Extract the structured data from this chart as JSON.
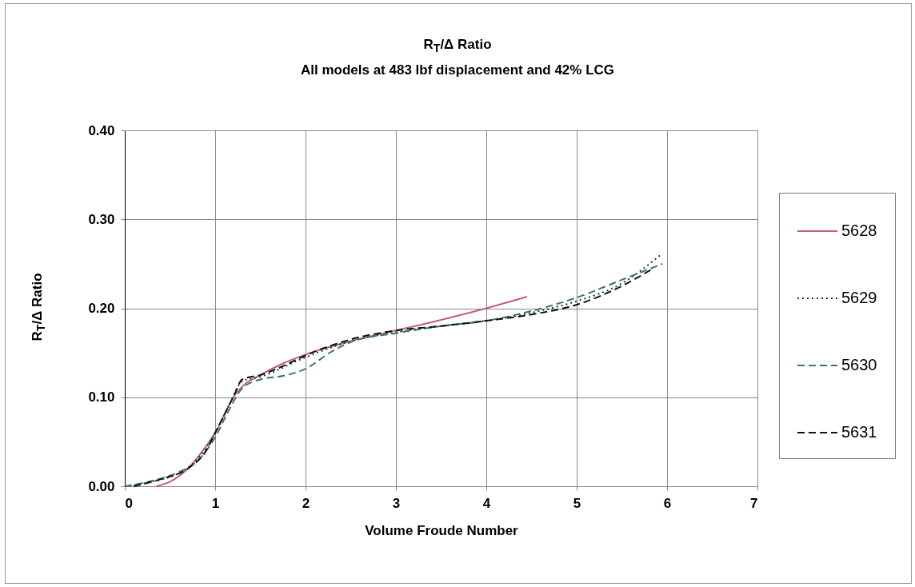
{
  "chart_data": {
    "type": "line",
    "title": "R$_{T}$/Δ Ratio",
    "subtitle": "All models at 483 lbf displacement and 42% LCG",
    "xlabel": "Volume Froude Number",
    "ylabel": "R$_{T}$/Δ Ratio",
    "xlim": [
      0,
      7
    ],
    "xticks": [
      0,
      1,
      2,
      3,
      4,
      5,
      6,
      7
    ],
    "ylim": [
      0,
      0.4
    ],
    "yticks": [
      {
        "value": 0,
        "label": "0.00"
      },
      {
        "value": 0.1,
        "label": "0.10"
      },
      {
        "value": 0.2,
        "label": "0.20"
      },
      {
        "value": 0.3,
        "label": "0.30"
      },
      {
        "value": 0.4,
        "label": "0.40"
      }
    ],
    "grid": true,
    "legend": "right",
    "series": [
      {
        "name": "5628",
        "color": "#c06070",
        "line_style": "solid",
        "x": [
          0.35,
          0.5,
          0.7,
          0.9,
          1.0,
          1.1,
          1.2,
          1.3,
          1.5,
          1.75,
          2.0,
          2.5,
          3.0,
          3.5,
          4.0,
          4.45
        ],
        "values": [
          0,
          0.005,
          0.02,
          0.045,
          0.06,
          0.08,
          0.1,
          0.112,
          0.125,
          0.138,
          0.148,
          0.163,
          0.175,
          0.187,
          0.2,
          0.213
        ]
      },
      {
        "name": "5629",
        "color": "#203050",
        "line_style": "dotted",
        "x": [
          0,
          0.3,
          0.6,
          0.8,
          1.0,
          1.15,
          1.3,
          1.5,
          2.0,
          2.5,
          3.0,
          3.5,
          4.0,
          4.5,
          5.0,
          5.5,
          5.94
        ],
        "values": [
          0,
          0.005,
          0.015,
          0.03,
          0.06,
          0.09,
          0.118,
          0.123,
          0.145,
          0.163,
          0.173,
          0.18,
          0.186,
          0.195,
          0.208,
          0.228,
          0.261
        ]
      },
      {
        "name": "5630",
        "color": "#3a7a5a",
        "line_style": "dashed",
        "x": [
          0,
          0.3,
          0.6,
          0.8,
          1.0,
          1.15,
          1.3,
          1.5,
          1.75,
          2.0,
          2.3,
          2.5,
          3.0,
          3.5,
          4.0,
          4.5,
          5.0,
          5.5,
          5.95
        ],
        "values": [
          0,
          0.006,
          0.016,
          0.028,
          0.055,
          0.085,
          0.11,
          0.12,
          0.124,
          0.132,
          0.152,
          0.162,
          0.172,
          0.18,
          0.186,
          0.197,
          0.212,
          0.232,
          0.25
        ]
      },
      {
        "name": "5631",
        "color": "#111111",
        "line_style": "dashed",
        "x": [
          0.1,
          0.4,
          0.7,
          0.9,
          1.0,
          1.1,
          1.2,
          1.3,
          1.5,
          1.75,
          2.0,
          2.5,
          3.0,
          3.5,
          4.0,
          4.5,
          5.0,
          5.5,
          5.85
        ],
        "values": [
          0,
          0.008,
          0.02,
          0.04,
          0.06,
          0.08,
          0.1,
          0.12,
          0.125,
          0.135,
          0.147,
          0.165,
          0.175,
          0.18,
          0.186,
          0.193,
          0.204,
          0.225,
          0.245
        ]
      }
    ]
  }
}
